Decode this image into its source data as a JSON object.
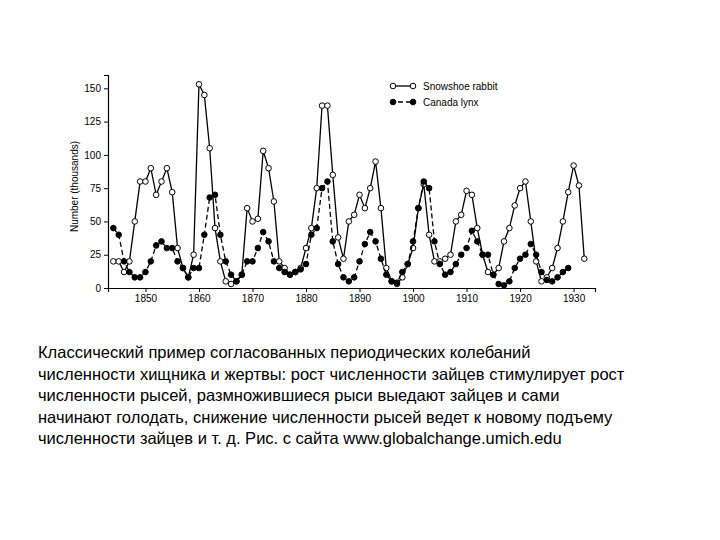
{
  "chart_data": {
    "type": "line",
    "y_label": "Number (thousands)",
    "annotations": [
      "Классический пример согласованных периодических колебаний",
      "численности хищника и жертвы: рост численности зайцев стимулирует рост",
      "численности рысей, размножившиеся рыси выедают зайцев и сами",
      "начинают голодать, снижение численности рысей ведет к новому подъему",
      "численности зайцев и т. д. Рис. с сайта www.globalchange.umich.edu"
    ],
    "x": [
      1844,
      1845,
      1846,
      1847,
      1848,
      1849,
      1850,
      1851,
      1852,
      1853,
      1854,
      1855,
      1856,
      1857,
      1858,
      1859,
      1860,
      1861,
      1862,
      1863,
      1864,
      1865,
      1866,
      1867,
      1868,
      1869,
      1870,
      1871,
      1872,
      1873,
      1874,
      1875,
      1876,
      1877,
      1878,
      1879,
      1880,
      1881,
      1882,
      1883,
      1884,
      1885,
      1886,
      1887,
      1888,
      1889,
      1890,
      1891,
      1892,
      1893,
      1894,
      1895,
      1896,
      1897,
      1898,
      1899,
      1900,
      1901,
      1902,
      1903,
      1904,
      1905,
      1906,
      1907,
      1908,
      1909,
      1910,
      1911,
      1912,
      1913,
      1914,
      1915,
      1916,
      1917,
      1918,
      1919,
      1920,
      1921,
      1922,
      1923,
      1924,
      1925,
      1926,
      1927,
      1928,
      1929,
      1930,
      1931,
      1932
    ],
    "series": [
      {
        "name": "Snowshoe rabbit",
        "color": "#000000",
        "marker": "circle-open",
        "line_style": "solid",
        "values": [
          20,
          20,
          12,
          20,
          50,
          80,
          80,
          90,
          70,
          80,
          90,
          72,
          30,
          15,
          8,
          25,
          153,
          145,
          105,
          45,
          20,
          5,
          3,
          5,
          10,
          60,
          50,
          52,
          103,
          90,
          65,
          20,
          15,
          10,
          12,
          15,
          30,
          45,
          75,
          137,
          137,
          85,
          38,
          22,
          50,
          55,
          70,
          60,
          75,
          95,
          60,
          15,
          5,
          3,
          8,
          18,
          30,
          60,
          78,
          40,
          20,
          20,
          22,
          25,
          50,
          55,
          73,
          70,
          45,
          25,
          12,
          10,
          15,
          35,
          45,
          62,
          75,
          80,
          50,
          20,
          5,
          8,
          15,
          30,
          50,
          72,
          92,
          77,
          22
        ]
      },
      {
        "name": "Canada lynx",
        "color": "#000000",
        "marker": "circle",
        "line_style": "dashed",
        "values": [
          45,
          40,
          20,
          12,
          8,
          8,
          12,
          20,
          32,
          35,
          30,
          30,
          20,
          15,
          8,
          15,
          15,
          40,
          68,
          70,
          40,
          20,
          10,
          5,
          10,
          20,
          20,
          30,
          42,
          35,
          20,
          15,
          12,
          10,
          12,
          14,
          18,
          40,
          45,
          75,
          80,
          35,
          18,
          8,
          5,
          8,
          20,
          33,
          42,
          35,
          22,
          10,
          5,
          4,
          12,
          18,
          35,
          60,
          80,
          75,
          35,
          18,
          10,
          12,
          18,
          25,
          30,
          43,
          35,
          25,
          25,
          10,
          3,
          2,
          5,
          15,
          22,
          25,
          33,
          25,
          12,
          6,
          5,
          8,
          12,
          15,
          null,
          null,
          null
        ]
      }
    ],
    "xlim": [
      1843,
      1934
    ],
    "xticks": [
      1850,
      1860,
      1870,
      1880,
      1890,
      1900,
      1910,
      1920,
      1930
    ],
    "ylim": [
      0,
      160
    ],
    "yticks": [
      0,
      25,
      50,
      75,
      100,
      125,
      150
    ],
    "legend": "top-right",
    "grid": false
  }
}
